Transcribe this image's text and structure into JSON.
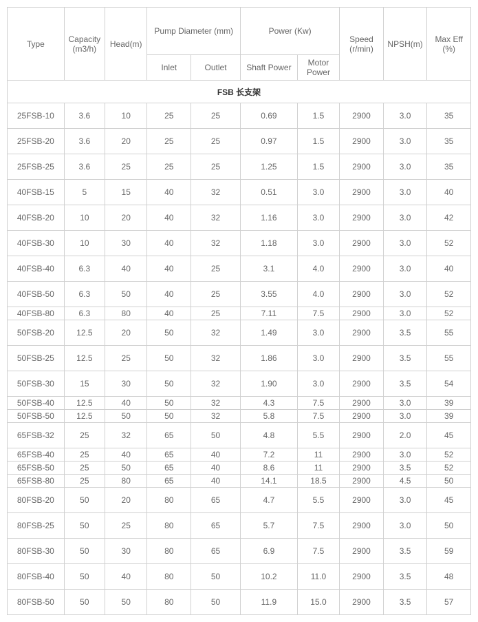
{
  "headers": {
    "type": "Type",
    "capacity": "Capacity (m3/h)",
    "head": "Head(m)",
    "pump_diameter": "Pump Diameter (mm)",
    "inlet": "Inlet",
    "outlet": "Outlet",
    "power": "Power (Kw)",
    "shaft_power": "Shaft Power",
    "motor_power": "Motor Power",
    "speed": "Speed (r/min)",
    "npsh": "NPSH(m)",
    "max_eff": "Max Eff (%)"
  },
  "section_title": "FSB 长支架",
  "rows": [
    {
      "type": "25FSB-10",
      "cap": "3.6",
      "head": "10",
      "inlet": "25",
      "outlet": "25",
      "shaft": "0.69",
      "motor": "1.5",
      "speed": "2900",
      "npsh": "3.0",
      "eff": "35",
      "slim": false
    },
    {
      "type": "25FSB-20",
      "cap": "3.6",
      "head": "20",
      "inlet": "25",
      "outlet": "25",
      "shaft": "0.97",
      "motor": "1.5",
      "speed": "2900",
      "npsh": "3.0",
      "eff": "35",
      "slim": false
    },
    {
      "type": "25FSB-25",
      "cap": "3.6",
      "head": "25",
      "inlet": "25",
      "outlet": "25",
      "shaft": "1.25",
      "motor": "1.5",
      "speed": "2900",
      "npsh": "3.0",
      "eff": "35",
      "slim": false
    },
    {
      "type": "40FSB-15",
      "cap": "5",
      "head": "15",
      "inlet": "40",
      "outlet": "32",
      "shaft": "0.51",
      "motor": "3.0",
      "speed": "2900",
      "npsh": "3.0",
      "eff": "40",
      "slim": false
    },
    {
      "type": "40FSB-20",
      "cap": "10",
      "head": "20",
      "inlet": "40",
      "outlet": "32",
      "shaft": "1.16",
      "motor": "3.0",
      "speed": "2900",
      "npsh": "3.0",
      "eff": "42",
      "slim": false
    },
    {
      "type": "40FSB-30",
      "cap": "10",
      "head": "30",
      "inlet": "40",
      "outlet": "32",
      "shaft": "1.18",
      "motor": "3.0",
      "speed": "2900",
      "npsh": "3.0",
      "eff": "52",
      "slim": false
    },
    {
      "type": "40FSB-40",
      "cap": "6.3",
      "head": "40",
      "inlet": "40",
      "outlet": "25",
      "shaft": "3.1",
      "motor": "4.0",
      "speed": "2900",
      "npsh": "3.0",
      "eff": "40",
      "slim": false
    },
    {
      "type": "40FSB-50",
      "cap": "6.3",
      "head": "50",
      "inlet": "40",
      "outlet": "25",
      "shaft": "3.55",
      "motor": "4.0",
      "speed": "2900",
      "npsh": "3.0",
      "eff": "52",
      "slim": false
    },
    {
      "type": "40FSB-80",
      "cap": "6.3",
      "head": "80",
      "inlet": "40",
      "outlet": "25",
      "shaft": "7.11",
      "motor": "7.5",
      "speed": "2900",
      "npsh": "3.0",
      "eff": "52",
      "slim": true
    },
    {
      "type": "50FSB-20",
      "cap": "12.5",
      "head": "20",
      "inlet": "50",
      "outlet": "32",
      "shaft": "1.49",
      "motor": "3.0",
      "speed": "2900",
      "npsh": "3.5",
      "eff": "55",
      "slim": false
    },
    {
      "type": "50FSB-25",
      "cap": "12.5",
      "head": "25",
      "inlet": "50",
      "outlet": "32",
      "shaft": "1.86",
      "motor": "3.0",
      "speed": "2900",
      "npsh": "3.5",
      "eff": "55",
      "slim": false
    },
    {
      "type": "50FSB-30",
      "cap": "15",
      "head": "30",
      "inlet": "50",
      "outlet": "32",
      "shaft": "1.90",
      "motor": "3.0",
      "speed": "2900",
      "npsh": "3.5",
      "eff": "54",
      "slim": false
    },
    {
      "type": "50FSB-40",
      "cap": "12.5",
      "head": "40",
      "inlet": "50",
      "outlet": "32",
      "shaft": "4.3",
      "motor": "7.5",
      "speed": "2900",
      "npsh": "3.0",
      "eff": "39",
      "slim": true
    },
    {
      "type": "50FSB-50",
      "cap": "12.5",
      "head": "50",
      "inlet": "50",
      "outlet": "32",
      "shaft": "5.8",
      "motor": "7.5",
      "speed": "2900",
      "npsh": "3.0",
      "eff": "39",
      "slim": true
    },
    {
      "type": "65FSB-32",
      "cap": "25",
      "head": "32",
      "inlet": "65",
      "outlet": "50",
      "shaft": "4.8",
      "motor": "5.5",
      "speed": "2900",
      "npsh": "2.0",
      "eff": "45",
      "slim": false
    },
    {
      "type": "65FSB-40",
      "cap": "25",
      "head": "40",
      "inlet": "65",
      "outlet": "40",
      "shaft": "7.2",
      "motor": "11",
      "speed": "2900",
      "npsh": "3.0",
      "eff": "52",
      "slim": true
    },
    {
      "type": "65FSB-50",
      "cap": "25",
      "head": "50",
      "inlet": "65",
      "outlet": "40",
      "shaft": "8.6",
      "motor": "11",
      "speed": "2900",
      "npsh": "3.5",
      "eff": "52",
      "slim": true
    },
    {
      "type": "65FSB-80",
      "cap": "25",
      "head": "80",
      "inlet": "65",
      "outlet": "40",
      "shaft": "14.1",
      "motor": "18.5",
      "speed": "2900",
      "npsh": "4.5",
      "eff": "50",
      "slim": true
    },
    {
      "type": "80FSB-20",
      "cap": "50",
      "head": "20",
      "inlet": "80",
      "outlet": "65",
      "shaft": "4.7",
      "motor": "5.5",
      "speed": "2900",
      "npsh": "3.0",
      "eff": "45",
      "slim": false
    },
    {
      "type": "80FSB-25",
      "cap": "50",
      "head": "25",
      "inlet": "80",
      "outlet": "65",
      "shaft": "5.7",
      "motor": "7.5",
      "speed": "2900",
      "npsh": "3.0",
      "eff": "50",
      "slim": false
    },
    {
      "type": "80FSB-30",
      "cap": "50",
      "head": "30",
      "inlet": "80",
      "outlet": "65",
      "shaft": "6.9",
      "motor": "7.5",
      "speed": "2900",
      "npsh": "3.5",
      "eff": "59",
      "slim": false
    },
    {
      "type": "80FSB-40",
      "cap": "50",
      "head": "40",
      "inlet": "80",
      "outlet": "50",
      "shaft": "10.2",
      "motor": "11.0",
      "speed": "2900",
      "npsh": "3.5",
      "eff": "48",
      "slim": false
    },
    {
      "type": "80FSB-50",
      "cap": "50",
      "head": "50",
      "inlet": "80",
      "outlet": "50",
      "shaft": "11.9",
      "motor": "15.0",
      "speed": "2900",
      "npsh": "3.5",
      "eff": "57",
      "slim": false
    }
  ]
}
